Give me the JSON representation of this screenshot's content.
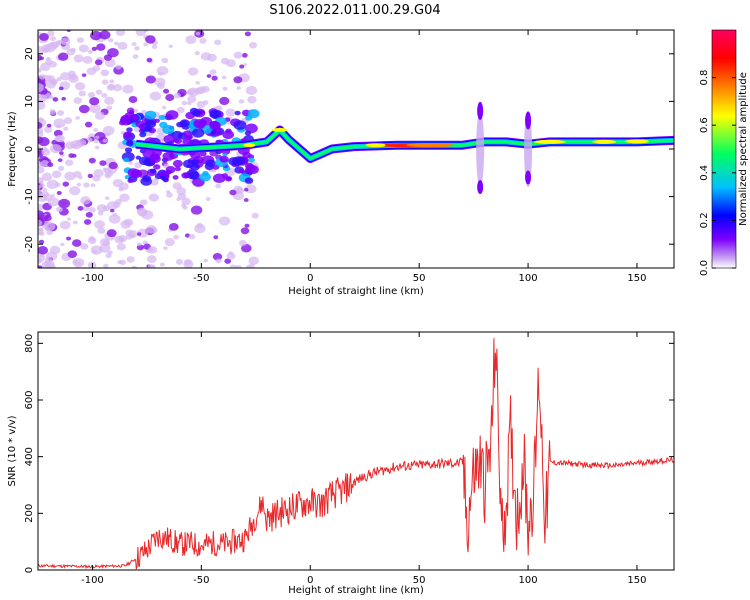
{
  "title": "S106.2022.011.00.29.G04",
  "chart_data": [
    {
      "type": "heatmap",
      "xlabel": "Height of straight line (km)",
      "ylabel": "Frequency (Hz)",
      "xlim": [
        -125,
        167
      ],
      "ylim": [
        -25,
        25
      ],
      "xticks": [
        -100,
        -50,
        0,
        50,
        100,
        150
      ],
      "yticks": [
        -20,
        -10,
        0,
        10,
        20
      ],
      "colorbar": {
        "label": "Normalized spectral amplitude",
        "range": [
          0,
          1
        ],
        "ticks": [
          "0.0",
          "0.2",
          "0.4",
          "0.6",
          "0.8"
        ],
        "colormap": [
          "#ffffff",
          "#c9a6f0",
          "#7f00ff",
          "#0000ff",
          "#00c0ff",
          "#00ff60",
          "#ffff00",
          "#ff8000",
          "#ff0000",
          "#ff0060"
        ]
      },
      "ridge": {
        "x": [
          -80,
          -60,
          -40,
          -30,
          -20,
          -14,
          -10,
          -5,
          0,
          5,
          10,
          20,
          40,
          60,
          70,
          80,
          90,
          100,
          110,
          130,
          150,
          167
        ],
        "y": [
          1,
          0,
          0.5,
          0.8,
          1.5,
          4,
          2,
          0,
          -2,
          -1,
          0,
          0.5,
          0.8,
          0.8,
          0.8,
          1.5,
          1.5,
          1,
          1.5,
          1.5,
          1.5,
          1.8
        ]
      }
    },
    {
      "type": "line",
      "xlabel": "Height of straight line (km)",
      "ylabel": "SNR (10 * v/v)",
      "xlim": [
        -125,
        167
      ],
      "ylim": [
        0,
        840
      ],
      "xticks": [
        -100,
        -50,
        0,
        50,
        100,
        150
      ],
      "yticks": [
        0,
        200,
        400,
        600,
        800
      ],
      "color": "#e8282a",
      "series": [
        {
          "x": [
            -125,
            -100,
            -85,
            -80,
            -75,
            -70,
            -65,
            -60,
            -55,
            -50,
            -45,
            -40,
            -35,
            -30,
            -25,
            -22,
            -20,
            -15,
            -10,
            -5,
            0,
            5,
            10,
            15,
            20,
            25,
            30,
            40,
            50,
            60,
            70,
            72,
            75,
            78,
            80,
            83,
            85,
            88,
            90,
            92,
            95,
            98,
            100,
            103,
            105,
            108,
            110,
            120,
            130,
            140,
            150,
            160,
            167
          ],
          "y": [
            15,
            12,
            15,
            40,
            70,
            120,
            110,
            90,
            95,
            85,
            95,
            90,
            100,
            110,
            190,
            240,
            180,
            200,
            215,
            230,
            240,
            230,
            265,
            280,
            310,
            330,
            345,
            365,
            370,
            375,
            378,
            160,
            340,
            380,
            300,
            430,
            820,
            120,
            250,
            480,
            180,
            390,
            160,
            320,
            700,
            160,
            380,
            375,
            370,
            368,
            378,
            385,
            388
          ]
        }
      ]
    }
  ]
}
